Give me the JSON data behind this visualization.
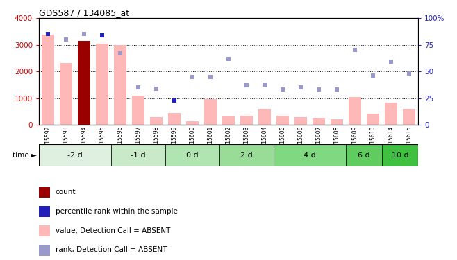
{
  "title": "GDS587 / 134085_at",
  "samples": [
    "GSM15592",
    "GSM15593",
    "GSM15594",
    "GSM15595",
    "GSM15596",
    "GSM15597",
    "GSM15598",
    "GSM15599",
    "GSM15600",
    "GSM15601",
    "GSM15602",
    "GSM15603",
    "GSM15604",
    "GSM15605",
    "GSM15606",
    "GSM15607",
    "GSM15608",
    "GSM15609",
    "GSM15610",
    "GSM15614",
    "GSM15615"
  ],
  "time_groups": [
    {
      "label": "-2 d",
      "indices": [
        0,
        1,
        2,
        3
      ]
    },
    {
      "label": "-1 d",
      "indices": [
        4,
        5,
        6
      ]
    },
    {
      "label": "0 d",
      "indices": [
        7,
        8,
        9
      ]
    },
    {
      "label": "2 d",
      "indices": [
        10,
        11,
        12
      ]
    },
    {
      "label": "4 d",
      "indices": [
        13,
        14,
        15,
        16
      ]
    },
    {
      "label": "6 d",
      "indices": [
        17,
        18
      ]
    },
    {
      "label": "10 d",
      "indices": [
        19,
        20
      ]
    }
  ],
  "group_colors": [
    "#e0f0e0",
    "#c8eac8",
    "#b0e4b0",
    "#98dc98",
    "#80d880",
    "#60cc60",
    "#40c040"
  ],
  "bar_values": [
    3380,
    2310,
    3150,
    3040,
    2990,
    1100,
    290,
    430,
    130,
    970,
    320,
    330,
    590,
    330,
    280,
    250,
    220,
    1040,
    420,
    820,
    590
  ],
  "count_bar_index": 2,
  "rank_values": [
    85,
    80,
    85,
    84,
    67,
    35,
    34,
    23,
    45,
    45,
    62,
    37,
    38,
    33,
    35,
    33,
    33,
    70,
    46,
    59,
    48
  ],
  "dark_rank_indices": [
    0,
    3,
    7
  ],
  "ylim_left": [
    0,
    4000
  ],
  "ylim_right": [
    0,
    100
  ],
  "yticks_left": [
    0,
    1000,
    2000,
    3000,
    4000
  ],
  "yticks_right": [
    0,
    25,
    50,
    75,
    100
  ],
  "grid_values": [
    1000,
    2000,
    3000
  ],
  "bar_pink": "#ffb8b8",
  "bar_red": "#990000",
  "dot_blue_dark": "#2222bb",
  "dot_blue_light": "#9999cc",
  "left_axis_color": "#cc0000",
  "right_axis_color": "#2222bb",
  "legend_items": [
    {
      "color": "#990000",
      "label": "count"
    },
    {
      "color": "#2222bb",
      "label": "percentile rank within the sample"
    },
    {
      "color": "#ffb8b8",
      "label": "value, Detection Call = ABSENT"
    },
    {
      "color": "#9999cc",
      "label": "rank, Detection Call = ABSENT"
    }
  ]
}
